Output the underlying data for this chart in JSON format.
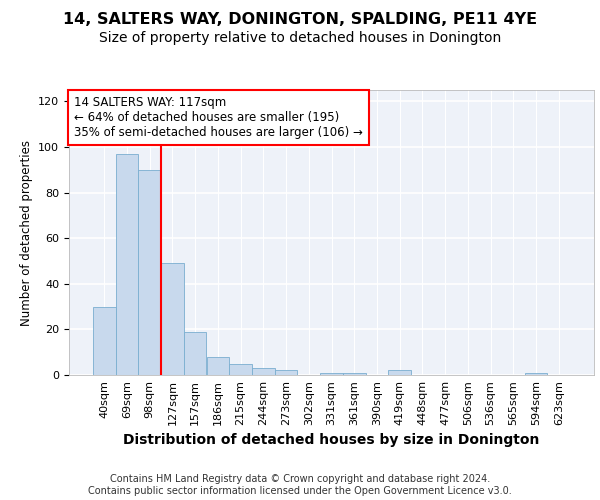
{
  "title": "14, SALTERS WAY, DONINGTON, SPALDING, PE11 4YE",
  "subtitle": "Size of property relative to detached houses in Donington",
  "xlabel": "Distribution of detached houses by size in Donington",
  "ylabel": "Number of detached properties",
  "bar_labels": [
    "40sqm",
    "69sqm",
    "98sqm",
    "127sqm",
    "157sqm",
    "186sqm",
    "215sqm",
    "244sqm",
    "273sqm",
    "302sqm",
    "331sqm",
    "361sqm",
    "390sqm",
    "419sqm",
    "448sqm",
    "477sqm",
    "506sqm",
    "536sqm",
    "565sqm",
    "594sqm",
    "623sqm"
  ],
  "bar_values": [
    30,
    97,
    90,
    49,
    19,
    8,
    5,
    3,
    2,
    0,
    1,
    1,
    0,
    2,
    0,
    0,
    0,
    0,
    0,
    1,
    0
  ],
  "bar_color": "#c8d9ed",
  "bar_edge_color": "#7aaed0",
  "ylim": [
    0,
    125
  ],
  "yticks": [
    0,
    20,
    40,
    60,
    80,
    100,
    120
  ],
  "annotation_title": "14 SALTERS WAY: 117sqm",
  "annotation_line1": "← 64% of detached houses are smaller (195)",
  "annotation_line2": "35% of semi-detached houses are larger (106) →",
  "red_line_x": 2.5,
  "footer1": "Contains HM Land Registry data © Crown copyright and database right 2024.",
  "footer2": "Contains public sector information licensed under the Open Government Licence v3.0.",
  "bg_color": "#eef2f9",
  "grid_color": "#ffffff",
  "title_fontsize": 11.5,
  "subtitle_fontsize": 10,
  "xlabel_fontsize": 10,
  "ylabel_fontsize": 8.5,
  "tick_fontsize": 8,
  "ann_fontsize": 8.5,
  "footer_fontsize": 7
}
